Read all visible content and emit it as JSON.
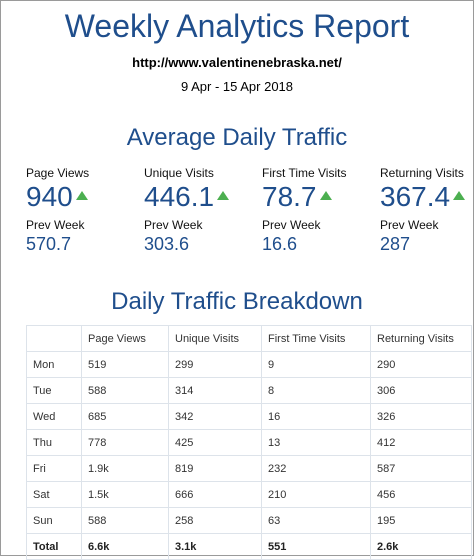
{
  "header": {
    "title": "Weekly Analytics Report",
    "url": "http://www.valentinenebraska.net/",
    "date_range": "9 Apr - 15 Apr 2018"
  },
  "traffic": {
    "heading": "Average Daily Traffic",
    "prev_label": "Prev Week",
    "trend_icon": "up-triangle-icon",
    "trend_color": "#4caf50",
    "metrics": [
      {
        "label": "Page Views",
        "value": "940",
        "prev": "570.7"
      },
      {
        "label": "Unique Visits",
        "value": "446.1",
        "prev": "303.6"
      },
      {
        "label": "First Time Visits",
        "value": "78.7",
        "prev": "16.6"
      },
      {
        "label": "Returning Visits",
        "value": "367.4",
        "prev": "287"
      }
    ]
  },
  "breakdown": {
    "heading": "Daily Traffic Breakdown",
    "columns": [
      "",
      "Page Views",
      "Unique Visits",
      "First Time Visits",
      "Returning Visits"
    ],
    "rows": [
      {
        "day": "Mon",
        "cells": [
          "519",
          "299",
          "9",
          "290"
        ]
      },
      {
        "day": "Tue",
        "cells": [
          "588",
          "314",
          "8",
          "306"
        ]
      },
      {
        "day": "Wed",
        "cells": [
          "685",
          "342",
          "16",
          "326"
        ]
      },
      {
        "day": "Thu",
        "cells": [
          "778",
          "425",
          "13",
          "412"
        ]
      },
      {
        "day": "Fri",
        "cells": [
          "1.9k",
          "819",
          "232",
          "587"
        ]
      },
      {
        "day": "Sat",
        "cells": [
          "1.5k",
          "666",
          "210",
          "456"
        ]
      },
      {
        "day": "Sun",
        "cells": [
          "588",
          "258",
          "63",
          "195"
        ]
      }
    ],
    "total": {
      "day": "Total",
      "cells": [
        "6.6k",
        "3.1k",
        "551",
        "2.6k"
      ]
    }
  }
}
